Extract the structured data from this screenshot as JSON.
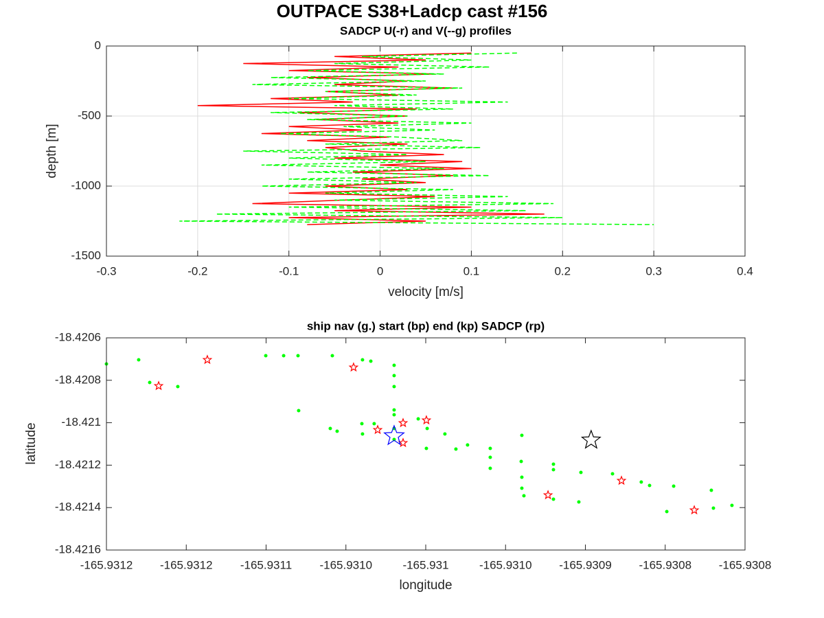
{
  "chart_data": [
    {
      "type": "line",
      "title": "OUTPACE S38+Ladcp cast #156",
      "subtitle": "SADCP U(-r) and V(--g) profiles",
      "xlabel": "velocity [m/s]",
      "ylabel": "depth [m]",
      "xlim": [
        -0.3,
        0.4
      ],
      "xticks": [
        -0.3,
        -0.2,
        -0.1,
        0,
        0.1,
        0.2,
        0.3,
        0.4
      ],
      "ylim": [
        -1500,
        0
      ],
      "yticks": [
        -1500,
        -1000,
        -500,
        0
      ],
      "grid": true,
      "y": [
        -50,
        -75,
        -100,
        -125,
        -150,
        -175,
        -200,
        -225,
        -250,
        -275,
        -300,
        -325,
        -350,
        -375,
        -400,
        -425,
        -450,
        -475,
        -500,
        -525,
        -550,
        -575,
        -600,
        -625,
        -650,
        -675,
        -700,
        -725,
        -750,
        -775,
        -800,
        -825,
        -850,
        -875,
        -900,
        -925,
        -950,
        -975,
        -1000,
        -1025,
        -1050,
        -1075,
        -1100,
        -1125,
        -1150,
        -1175,
        -1200,
        -1225,
        -1250,
        -1275
      ],
      "series": [
        {
          "color": "#ff0000",
          "style": "solid",
          "values": [
            0.1,
            -0.05,
            0.05,
            -0.15,
            0.02,
            -0.1,
            0.06,
            -0.08,
            0.03,
            -0.05,
            0.08,
            -0.06,
            0.02,
            -0.12,
            -0.03,
            -0.2,
            0.04,
            -0.09,
            0.03,
            -0.07,
            0.02,
            -0.1,
            -0.02,
            -0.13,
            0.01,
            -0.08,
            0.03,
            -0.06,
            -0.02,
            0.07,
            -0.05,
            0.09,
            0.0,
            0.1,
            -0.03,
            0.08,
            -0.02,
            0.05,
            -0.06,
            0.03,
            -0.1,
            0.06,
            -0.04,
            -0.14,
            0.1,
            -0.05,
            0.18,
            -0.1,
            0.05,
            -0.08
          ]
        },
        {
          "color": "#00ff00",
          "style": "dashed",
          "values": [
            0.15,
            -0.02,
            0.1,
            -0.05,
            0.12,
            -0.08,
            0.07,
            -0.12,
            0.05,
            -0.14,
            0.09,
            -0.06,
            0.04,
            -0.1,
            0.14,
            -0.05,
            0.08,
            -0.12,
            0.03,
            -0.08,
            0.1,
            -0.04,
            0.06,
            -0.11,
            0.02,
            0.09,
            -0.06,
            0.11,
            -0.15,
            0.03,
            -0.1,
            0.05,
            -0.13,
            0.07,
            -0.08,
            0.12,
            -0.1,
            0.04,
            -0.13,
            0.08,
            -0.06,
            0.14,
            -0.05,
            0.19,
            -0.1,
            0.16,
            -0.18,
            0.2,
            -0.22,
            0.3
          ]
        }
      ]
    },
    {
      "type": "scatter",
      "title": "ship nav (g.) start (bp) end (kp) SADCP (rp)",
      "xlabel": "longitude",
      "ylabel": "latitude",
      "xlim": [
        -165.9312,
        -165.9308
      ],
      "xticks": [
        {
          "value": -165.9312,
          "label": "-165.9312"
        },
        {
          "value": -165.93115,
          "label": "-165.9312"
        },
        {
          "value": -165.9311,
          "label": "-165.9311"
        },
        {
          "value": -165.93105,
          "label": "-165.9310"
        },
        {
          "value": -165.931,
          "label": "-165.931"
        },
        {
          "value": -165.93095,
          "label": "-165.9310"
        },
        {
          "value": -165.9309,
          "label": "-165.9309"
        },
        {
          "value": -165.93085,
          "label": "-165.9308"
        },
        {
          "value": -165.9308,
          "label": "-165.9308"
        }
      ],
      "ylim": [
        -18.4216,
        -18.4206
      ],
      "yticks": [
        -18.4216,
        -18.4214,
        -18.4212,
        -18.421,
        -18.4208,
        -18.4206
      ],
      "grid": false,
      "series": [
        {
          "color": "#00ff00",
          "marker": "dot",
          "size": 2.5,
          "x": [
            -165.9312,
            -165.9311798,
            -165.9311729,
            -165.9311553,
            -165.9311002,
            -165.931089,
            -165.93108,
            -165.9310796,
            -165.9310585,
            -165.9310598,
            -165.9310555,
            -165.9310396,
            -165.9310344,
            -165.9310198,
            -165.9310198,
            -165.9310198,
            -165.9310198,
            -165.9310198,
            -165.93104,
            -165.9310396,
            -165.9310323,
            -165.9310198,
            -165.9310198,
            -165.9310047,
            -165.9309991,
            -165.9309996,
            -165.930988,
            -165.9309811,
            -165.9309738,
            -165.9309596,
            -165.9309596,
            -165.9309596,
            -165.9309398,
            -165.9309402,
            -165.9309398,
            -165.9309398,
            -165.9309385,
            -165.93092,
            -165.93092,
            -165.93092,
            -165.9309028,
            -165.9309041,
            -165.930883,
            -165.930865,
            -165.9308598,
            -165.9308447,
            -165.930849,
            -165.9308211,
            -165.9308198,
            -165.9308082
          ],
          "y": [
            -18.420723,
            -18.4207036,
            -18.4208103,
            -18.4208298,
            -18.4206841,
            -18.4206841,
            -18.4206841,
            -18.420943,
            -18.4206841,
            -18.4210272,
            -18.4210401,
            -18.4207036,
            -18.42071,
            -18.4207294,
            -18.420778,
            -18.4208298,
            -18.4209398,
            -18.4209624,
            -18.4210045,
            -18.421053,
            -18.4210045,
            -18.4210272,
            -18.4210789,
            -18.4209819,
            -18.4210272,
            -18.421121,
            -18.421053,
            -18.4211243,
            -18.4211048,
            -18.421121,
            -18.4211631,
            -18.4212149,
            -18.4210595,
            -18.4211825,
            -18.421257,
            -18.4213087,
            -18.4213443,
            -18.4211955,
            -18.4212214,
            -18.4213605,
            -18.4212343,
            -18.4213735,
            -18.4212408,
            -18.4212796,
            -18.4212958,
            -18.421299,
            -18.4214188,
            -18.4213184,
            -18.4214026,
            -18.4213896
          ]
        },
        {
          "color": "#ff0000",
          "marker": "star",
          "size": 6,
          "x": [
            -165.9311673,
            -165.9311368,
            -165.9310452,
            -165.9310301,
            -165.9310142,
            -165.9310142,
            -165.9309996,
            -165.9309234,
            -165.9308774,
            -165.9308318
          ],
          "y": [
            -18.4208265,
            -18.4207036,
            -18.4207391,
            -18.4210336,
            -18.4210013,
            -18.4210951,
            -18.4209883,
            -18.421341,
            -18.4212731,
            -18.4214122
          ]
        },
        {
          "color": "#0000ff",
          "marker": "star",
          "size": 15,
          "x": [
            -165.9310198
          ],
          "y": [
            -18.4210628
          ]
        },
        {
          "color": "#000000",
          "marker": "star",
          "size": 14,
          "x": [
            -165.9308964
          ],
          "y": [
            -18.4210822
          ]
        }
      ]
    }
  ]
}
